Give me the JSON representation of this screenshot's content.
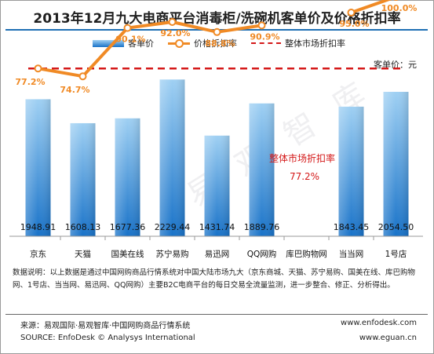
{
  "title": "2013年12月九大电商平台消毒柜/洗碗机客单价及价格折扣率",
  "legend": {
    "bar": "客单价",
    "line": "价格折扣率",
    "ref": "整体市场折扣率"
  },
  "unit_label": "客单价：元",
  "ref_annotation": {
    "label": "整体市场折扣率",
    "value": "77.2%"
  },
  "footnote": "数据说明：以上数据是通过中国网购商品行情系统对中国大陆市场九大（京东商城、天猫、苏宁易购、国美在线、库巴购物网、1号店、当当网、易迅网、QQ网购）主要B2C电商平台的每日交易全流量监测，进一步整合、修正、分析得出。",
  "source": {
    "line1_left": "来源：易观国际·易观智库·中国网购商品行情系统",
    "line1_right": "www.enfodesk.com",
    "line2_left": "SOURCE: EnfoDesk © Analysys International",
    "line2_right": "www.eguan.cn"
  },
  "watermark": "易 观 智 库",
  "colors": {
    "bar_top": "#9fd0f3",
    "bar_bottom": "#1872c8",
    "line": "#f08a25",
    "ref": "#d41818",
    "title_rule": "#1e6fb4"
  },
  "chart_data": {
    "type": "bar",
    "categories": [
      "京东",
      "天猫",
      "国美在线",
      "苏宁易购",
      "易迅网",
      "QQ网购",
      "库巴购物网",
      "当当网",
      "1号店"
    ],
    "series": [
      {
        "name": "客单价",
        "type": "bar",
        "values": [
          1948.91,
          1608.13,
          1677.36,
          2229.44,
          1431.74,
          1889.76,
          null,
          1843.45,
          2054.5
        ],
        "labels": [
          "1948.91",
          "1608.13",
          "1677.36",
          "2229.44",
          "1431.74",
          "1889.76",
          "",
          "1843.45",
          "2054.50"
        ]
      },
      {
        "name": "价格折扣率",
        "type": "line",
        "values": [
          77.2,
          74.7,
          90.1,
          92.0,
          88.8,
          90.9,
          null,
          95.0,
          100.0
        ],
        "labels": [
          "77.2%",
          "74.7%",
          "90.1%",
          "92.0%",
          "88.8%",
          "90.9%",
          "",
          "95.0%",
          "100.0%"
        ]
      },
      {
        "name": "整体市场折扣率",
        "type": "reference",
        "value": 77.2
      }
    ],
    "ylim_bar": [
      0,
      2300
    ],
    "ylim_line": [
      0,
      105
    ],
    "legend_position": "top",
    "grid": false
  }
}
